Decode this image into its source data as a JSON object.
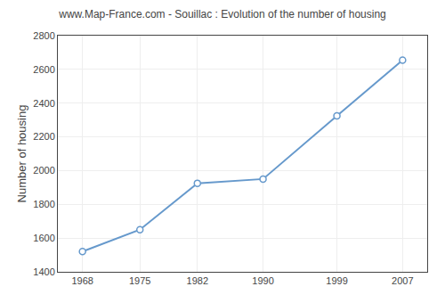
{
  "chart_data": {
    "type": "line",
    "title": "www.Map-France.com - Souillac : Evolution of the number of housing",
    "ylabel": "Number of housing",
    "x": [
      1968,
      1975,
      1982,
      1990,
      1999,
      2007
    ],
    "values": [
      1520,
      1650,
      1925,
      1950,
      2325,
      2655
    ],
    "color": "#6699cc",
    "marker": "o",
    "xlim": [
      1965,
      2010
    ],
    "xticks": [
      1968,
      1975,
      1982,
      1990,
      1999,
      2007
    ],
    "ylim": [
      1400,
      2800
    ],
    "yticks": [
      1400,
      1600,
      1800,
      2000,
      2200,
      2400,
      2600,
      2800
    ],
    "grid": true
  }
}
